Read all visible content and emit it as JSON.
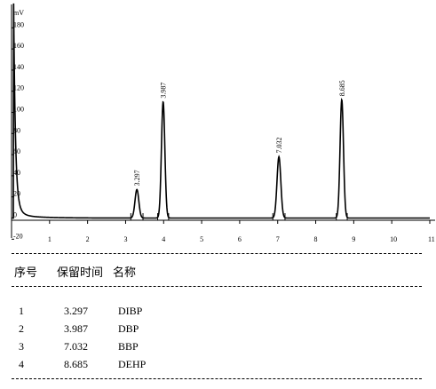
{
  "chart_data": {
    "type": "line",
    "ylabel": "mV",
    "xlim": [
      0,
      11
    ],
    "ylim": [
      -20,
      190
    ],
    "x_ticks": [
      "1",
      "2",
      "3",
      "4",
      "5",
      "6",
      "7",
      "8",
      "9",
      "10",
      "11"
    ],
    "y_ticks": [
      "-20",
      "0",
      "20",
      "40",
      "60",
      "80",
      "100",
      "120",
      "140",
      "160",
      "180"
    ],
    "baseline_mv": 0,
    "peaks": [
      {
        "label": "3.297",
        "rt": 3.297,
        "height": 27,
        "width": 0.05
      },
      {
        "label": "3.987",
        "rt": 3.987,
        "height": 110,
        "width": 0.045
      },
      {
        "label": "7.032",
        "rt": 7.032,
        "height": 58,
        "width": 0.05
      },
      {
        "label": "8.685",
        "rt": 8.685,
        "height": 112,
        "width": 0.045
      }
    ],
    "solvent_front": {
      "x": 0.05,
      "height": 200
    }
  },
  "table": {
    "headers": {
      "no": "序号",
      "rt": "保留时间",
      "name": "名称"
    },
    "rows": [
      {
        "no": "1",
        "rt": "3.297",
        "name": "DIBP"
      },
      {
        "no": "2",
        "rt": "3.987",
        "name": "DBP"
      },
      {
        "no": "3",
        "rt": "7.032",
        "name": "BBP"
      },
      {
        "no": "4",
        "rt": "8.685",
        "name": "DEHP"
      }
    ]
  }
}
